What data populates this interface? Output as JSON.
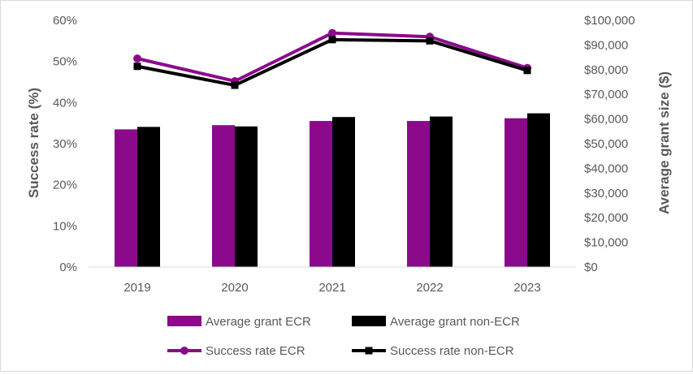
{
  "chart_data": {
    "type": "bar+line",
    "categories": [
      "2019",
      "2020",
      "2021",
      "2022",
      "2023"
    ],
    "bar_series": [
      {
        "name": "Average grant ECR",
        "color": "#8B0A8C",
        "values": [
          55800,
          57500,
          59200,
          59200,
          60300
        ]
      },
      {
        "name": "Average grant non-ECR",
        "color": "#000000",
        "values": [
          56800,
          57000,
          60800,
          61000,
          62300
        ]
      }
    ],
    "line_series": [
      {
        "name": "Success rate ECR",
        "color": "#8B0A8C",
        "marker": "circle",
        "values": [
          50.7,
          45.2,
          56.9,
          56.0,
          48.4
        ]
      },
      {
        "name": "Success rate non-ECR",
        "color": "#000000",
        "marker": "square",
        "values": [
          48.8,
          44.2,
          55.3,
          55.0,
          47.8
        ]
      }
    ],
    "y_left": {
      "label": "Success rate (%)",
      "min": 0,
      "max": 60,
      "step": 10,
      "tick_format": "percent"
    },
    "y_right": {
      "label": "Average grant size ($)",
      "min": 0,
      "max": 100000,
      "step": 10000,
      "tick_format": "currency"
    },
    "legend_position": "bottom",
    "grid": false
  }
}
